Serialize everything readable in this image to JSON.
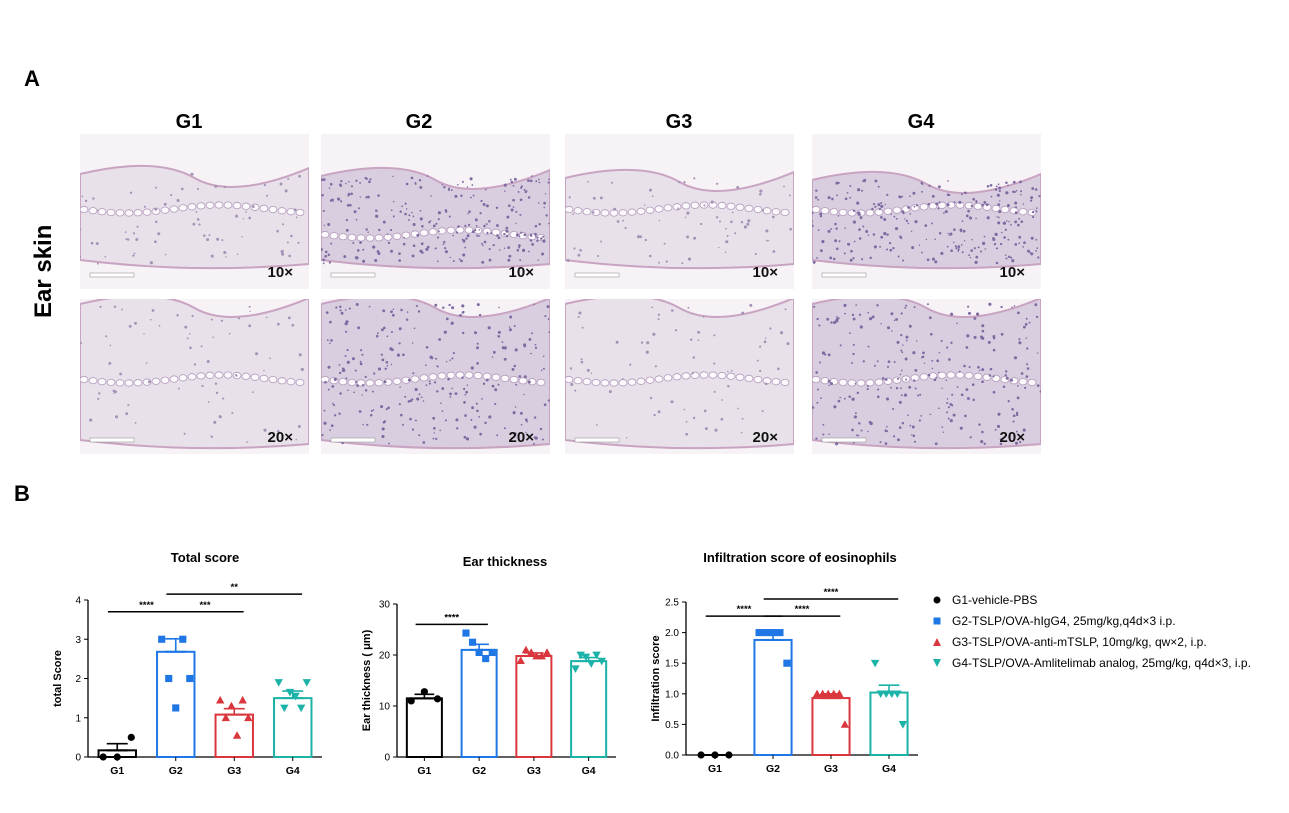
{
  "panel_labels": {
    "a": "A",
    "b": "B"
  },
  "section_a": {
    "row_label": "Ear skin",
    "groups": [
      "G1",
      "G2",
      "G3",
      "G4"
    ],
    "magnifications": [
      "10×",
      "20×"
    ]
  },
  "legend": [
    {
      "label": "G1-vehicle-PBS",
      "color": "#000000",
      "marker": "circle"
    },
    {
      "label": "G2-TSLP/OVA-hIgG4, 25mg/kg,q4d×3 i.p.",
      "color": "#1f77e6",
      "marker": "square"
    },
    {
      "label": "G3-TSLP/OVA-anti-mTSLP, 10mg/kg, qw×2, i.p.",
      "color": "#d9363e",
      "marker": "triangle-up"
    },
    {
      "label": "G4-TSLP/OVA-Amlitelimab analog, 25mg/kg, q4d×3, i.p.",
      "color": "#1bb3a8",
      "marker": "triangle-down"
    }
  ],
  "chart_data": [
    {
      "type": "bar",
      "title": "Total score",
      "ylabel": "total Score",
      "xlabel": "",
      "ylim": [
        0,
        4
      ],
      "yticks": [
        0,
        1,
        2,
        3,
        4
      ],
      "categories": [
        "G1",
        "G2",
        "G3",
        "G4"
      ],
      "values": [
        0.17,
        2.68,
        1.08,
        1.5
      ],
      "sem": [
        0.17,
        0.33,
        0.15,
        0.18
      ],
      "points": [
        [
          0,
          0,
          0.5
        ],
        [
          3.0,
          2.0,
          1.25,
          3.0,
          2.0
        ],
        [
          1.45,
          1.0,
          1.3,
          0.55,
          1.45,
          1.0
        ],
        [
          1.9,
          1.25,
          1.65,
          1.55,
          1.25,
          1.9
        ]
      ],
      "significance": [
        {
          "from": 0,
          "to": 1,
          "label": "****",
          "y": 3.7
        },
        {
          "from": 1,
          "to": 2,
          "label": "***",
          "y": 3.7
        },
        {
          "from": 1,
          "to": 3,
          "label": "**",
          "y": 4.15
        }
      ]
    },
    {
      "type": "bar",
      "title": "Ear thickness",
      "ylabel": "Ear thickness ( μm)",
      "xlabel": "",
      "ylim": [
        0,
        30
      ],
      "yticks": [
        0,
        10,
        20,
        30
      ],
      "categories": [
        "G1",
        "G2",
        "G3",
        "G4"
      ],
      "values": [
        11.5,
        21.0,
        19.8,
        18.8
      ],
      "sem": [
        0.8,
        1.1,
        0.6,
        0.7
      ],
      "points": [
        [
          11.0,
          12.8,
          11.4
        ],
        [
          24.3,
          22.5,
          20.5,
          19.3,
          20.5
        ],
        [
          18.9,
          21.0,
          20.5,
          19.8,
          19.8,
          20.5
        ],
        [
          17.3,
          20.0,
          19.6,
          18.3,
          20.0,
          18.8
        ]
      ],
      "significance": [
        {
          "from": 0,
          "to": 1,
          "label": "****",
          "y": 26.0
        }
      ]
    },
    {
      "type": "bar",
      "title": "Infiltration score of eosinophils",
      "ylabel": "Infiltration score",
      "xlabel": "",
      "ylim": [
        0,
        2.5
      ],
      "yticks": [
        "0.0",
        "0.5",
        "1.0",
        "1.5",
        "2.0",
        "2.5"
      ],
      "categories": [
        "G1",
        "G2",
        "G3",
        "G4"
      ],
      "values": [
        0.0,
        1.88,
        0.93,
        1.02
      ],
      "sem": [
        0.0,
        0.1,
        0.07,
        0.12
      ],
      "points": [
        [
          0,
          0,
          0
        ],
        [
          2.0,
          2.0,
          2.0,
          2.0,
          1.5
        ],
        [
          1.0,
          1.0,
          1.0,
          1.0,
          1.0,
          0.5
        ],
        [
          1.5,
          1.0,
          1.0,
          1.0,
          1.0,
          0.5
        ]
      ],
      "significance": [
        {
          "from": 0,
          "to": 1,
          "label": "****",
          "y": 2.27
        },
        {
          "from": 1,
          "to": 2,
          "label": "****",
          "y": 2.27
        },
        {
          "from": 1,
          "to": 3,
          "label": "****",
          "y": 2.55
        }
      ]
    }
  ]
}
